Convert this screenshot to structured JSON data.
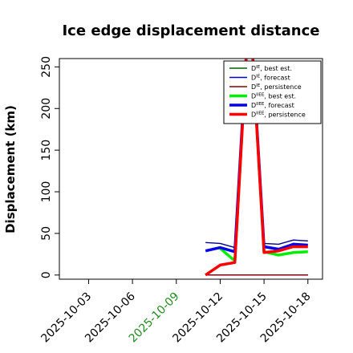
{
  "chart_data": {
    "type": "line",
    "title": "Ice edge displacement distance",
    "xlabel": "",
    "ylabel": "Displacement (km)",
    "x_dates": [
      "2025-10-11",
      "2025-10-12",
      "2025-10-13",
      "2025-10-14",
      "2025-10-15",
      "2025-10-16",
      "2025-10-17",
      "2025-10-18"
    ],
    "xlim": [
      "2025-10-01",
      "2025-10-19"
    ],
    "x_ticks": [
      "2025-10-03",
      "2025-10-06",
      "2025-10-09",
      "2025-10-12",
      "2025-10-15",
      "2025-10-18"
    ],
    "x_tick_colors": [
      "#000000",
      "#000000",
      "#228b22",
      "#000000",
      "#000000",
      "#000000"
    ],
    "ylim": [
      -5,
      260
    ],
    "y_ticks": [
      0,
      50,
      100,
      150,
      200,
      250
    ],
    "grid": false,
    "legend_position": "top-right",
    "series": [
      {
        "name": "D^IE, best est.",
        "color": "#006400",
        "width": "thin",
        "values": [
          0,
          0,
          0,
          0,
          0,
          0,
          0,
          0
        ]
      },
      {
        "name": "D^IE, forecast",
        "color": "#0000cd",
        "width": "thin",
        "values": [
          0,
          0,
          0,
          0,
          0,
          0,
          0,
          0
        ]
      },
      {
        "name": "D^IE, persistence",
        "color": "#8b0000",
        "width": "thin",
        "values": [
          0,
          0,
          0,
          0,
          0,
          0,
          0,
          0
        ]
      },
      {
        "name": "D^IIEE, best est.",
        "color": "#00ee00",
        "width": "thick",
        "values": [
          null,
          32,
          17,
          330,
          28,
          24,
          27,
          28
        ]
      },
      {
        "name": "D^IIEE, forecast",
        "color": "#0000ee",
        "width": "thick",
        "values": [
          29,
          33,
          28,
          330,
          34,
          31,
          37,
          36
        ]
      },
      {
        "name": "D^IIEE, persistence",
        "color": "#ff0000",
        "width": "thick",
        "values": [
          0,
          12,
          15,
          330,
          27,
          29,
          34,
          34
        ]
      }
    ],
    "extra_lines": [
      {
        "name": "D^IIEE, forecast upper",
        "color": "#00008b",
        "width": "thin",
        "values": [
          39,
          38,
          33,
          330,
          38,
          37,
          42,
          41
        ]
      }
    ]
  },
  "legend": {
    "entries": [
      {
        "base": "D",
        "sup": "IE",
        "suffix": ", best est."
      },
      {
        "base": "D",
        "sup": "IE",
        "suffix": ", forecast"
      },
      {
        "base": "D",
        "sup": "IE",
        "suffix": ", persistence"
      },
      {
        "base": "D",
        "sup": "IIEE",
        "suffix": ", best est."
      },
      {
        "base": "D",
        "sup": "IIEE",
        "suffix": ", forecast"
      },
      {
        "base": "D",
        "sup": "IIEE",
        "suffix": ", persistence"
      }
    ]
  }
}
